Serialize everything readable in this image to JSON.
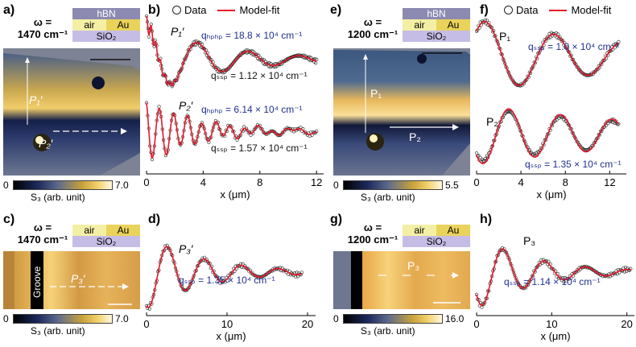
{
  "panel_letters": [
    "a)",
    "b)",
    "c)",
    "d)",
    "e)",
    "f)",
    "g)",
    "h)"
  ],
  "omega_a": {
    "line1": "ω =",
    "line2": "1470 cm⁻¹"
  },
  "omega_c": {
    "line1": "ω =",
    "line2": "1470 cm⁻¹"
  },
  "omega_e": {
    "line1": "ω =",
    "line2": "1200 cm⁻¹"
  },
  "omega_g": {
    "line1": "ω =",
    "line2": "1200 cm⁻¹"
  },
  "stack": {
    "hbn": "hBN",
    "air": "air",
    "au": "Au",
    "sio2": "SiO₂"
  },
  "maps": {
    "a": {
      "label1": "P₁′",
      "label2": "P₂′"
    },
    "c": {
      "groove": "Groove",
      "label": "P₃′"
    },
    "e": {
      "label1": "P₁",
      "label2": "P₂"
    },
    "g": {
      "label": "P₃"
    }
  },
  "colorbars": {
    "a": {
      "min": "0",
      "max": "7.0",
      "label": "S₃ (arb. unit)"
    },
    "c": {
      "min": "0",
      "max": "7.0",
      "label": "S₃ (arb. unit)"
    },
    "e": {
      "min": "0",
      "max": "5.5",
      "label": "S₃ (arb. unit)"
    },
    "g": {
      "min": "0",
      "max": "16.0",
      "label": "S₃ (arb. unit)"
    }
  },
  "legend": {
    "data": "Data",
    "fit": "Model-fit"
  },
  "colors": {
    "fit": "#e8182a",
    "data": "#222222",
    "annot": "#1f2f8f"
  },
  "chart_data": [
    {
      "id": "b-top",
      "type": "line",
      "label": "P₁′",
      "xlim": [
        0,
        12.5
      ],
      "annotations": [
        "qₕₚₕₚ = 18.8 × 10⁴ cm⁻¹",
        "qₛₛₚ = 1.12 × 10⁴ cm⁻¹"
      ],
      "series": [
        {
          "name": "Data"
        },
        {
          "name": "Model-fit"
        }
      ]
    },
    {
      "id": "b-bottom",
      "type": "line",
      "label": "P₂′",
      "xlim": [
        0,
        12.5
      ],
      "xlabel": "x (μm)",
      "xticks": [
        0,
        4,
        8,
        12
      ],
      "annotations": [
        "qₕₚₕₚ = 6.14 × 10⁴ cm⁻¹",
        "qₛₛₚ = 1.57 × 10⁴ cm⁻¹"
      ],
      "series": [
        {
          "name": "Data"
        },
        {
          "name": "Model-fit"
        }
      ]
    },
    {
      "id": "d",
      "type": "line",
      "label": "P₃′",
      "xlim": [
        0,
        21
      ],
      "xlabel": "x (μm)",
      "xticks": [
        0,
        10,
        20
      ],
      "annotations": [
        "qₛₛₚ = 1.35 × 10⁴ cm⁻¹"
      ],
      "series": [
        {
          "name": "Data"
        },
        {
          "name": "Model-fit"
        }
      ]
    },
    {
      "id": "f-top",
      "type": "line",
      "label": "P₁",
      "xlim": [
        0,
        13.5
      ],
      "annotations": [
        "qₛₛₚ = 1.0 × 10⁴ cm⁻¹"
      ],
      "series": [
        {
          "name": "Data"
        },
        {
          "name": "Model-fit"
        }
      ]
    },
    {
      "id": "f-bottom",
      "type": "line",
      "label": "P₂",
      "xlim": [
        0,
        13.5
      ],
      "xlabel": "x (μm)",
      "xticks": [
        0,
        4,
        8,
        12
      ],
      "annotations": [
        "qₛₛₚ = 1.35 × 10⁴ cm⁻¹"
      ],
      "series": [
        {
          "name": "Data"
        },
        {
          "name": "Model-fit"
        }
      ]
    },
    {
      "id": "h",
      "type": "line",
      "label": "P₃",
      "xlim": [
        0,
        21
      ],
      "xlabel": "x (μm)",
      "xticks": [
        0,
        10,
        20
      ],
      "annotations": [
        "qₛₛₚ = 1.14 × 10⁴ cm⁻¹"
      ],
      "series": [
        {
          "name": "Data"
        },
        {
          "name": "Model-fit"
        }
      ]
    }
  ]
}
